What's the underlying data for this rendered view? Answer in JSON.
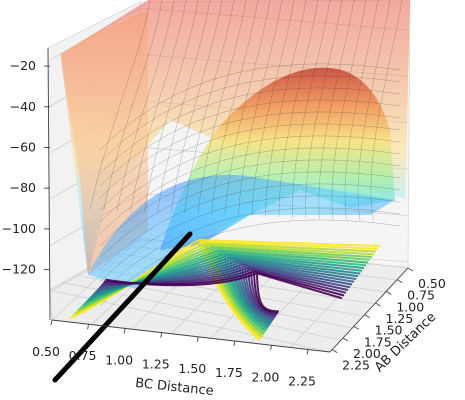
{
  "chart_data": {
    "type": "surface3d",
    "title": "",
    "xlabel": "BC Distance",
    "ylabel": "AB Distance",
    "zlabel": "",
    "x_ticks": [
      "0.50",
      "0.75",
      "1.00",
      "1.25",
      "1.50",
      "1.75",
      "2.00",
      "2.25"
    ],
    "y_ticks": [
      "0.50",
      "0.75",
      "1.00",
      "1.25",
      "1.50",
      "1.75",
      "2.00",
      "2.25"
    ],
    "z_ticks": [
      "−120",
      "−100",
      "−80",
      "−60",
      "−40",
      "−20"
    ],
    "x_range": [
      0.5,
      2.4
    ],
    "y_range": [
      0.5,
      2.3
    ],
    "z_range": [
      -132,
      -18
    ],
    "colormap_surface": "jet",
    "colormap_contour": "viridis",
    "contour_projection": "floor",
    "trajectory_color": "#000000",
    "grid": true
  }
}
